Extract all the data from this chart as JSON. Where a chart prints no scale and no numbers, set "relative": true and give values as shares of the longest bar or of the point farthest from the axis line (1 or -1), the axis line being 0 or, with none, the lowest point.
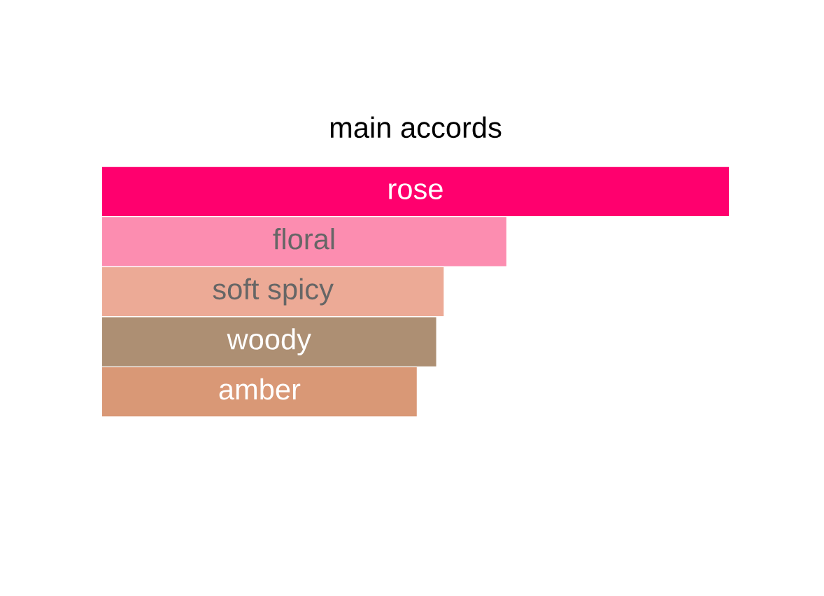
{
  "chart_data": {
    "type": "bar",
    "orientation": "horizontal",
    "relative": true,
    "title": "main accords",
    "categories": [
      "rose",
      "floral",
      "soft spicy",
      "woody",
      "amber"
    ],
    "values": [
      1,
      0.645,
      0.545,
      0.533,
      0.502
    ],
    "colors": [
      "#ff006e",
      "#fc8db0",
      "#ecaa96",
      "#ad8f73",
      "#d99876"
    ]
  }
}
